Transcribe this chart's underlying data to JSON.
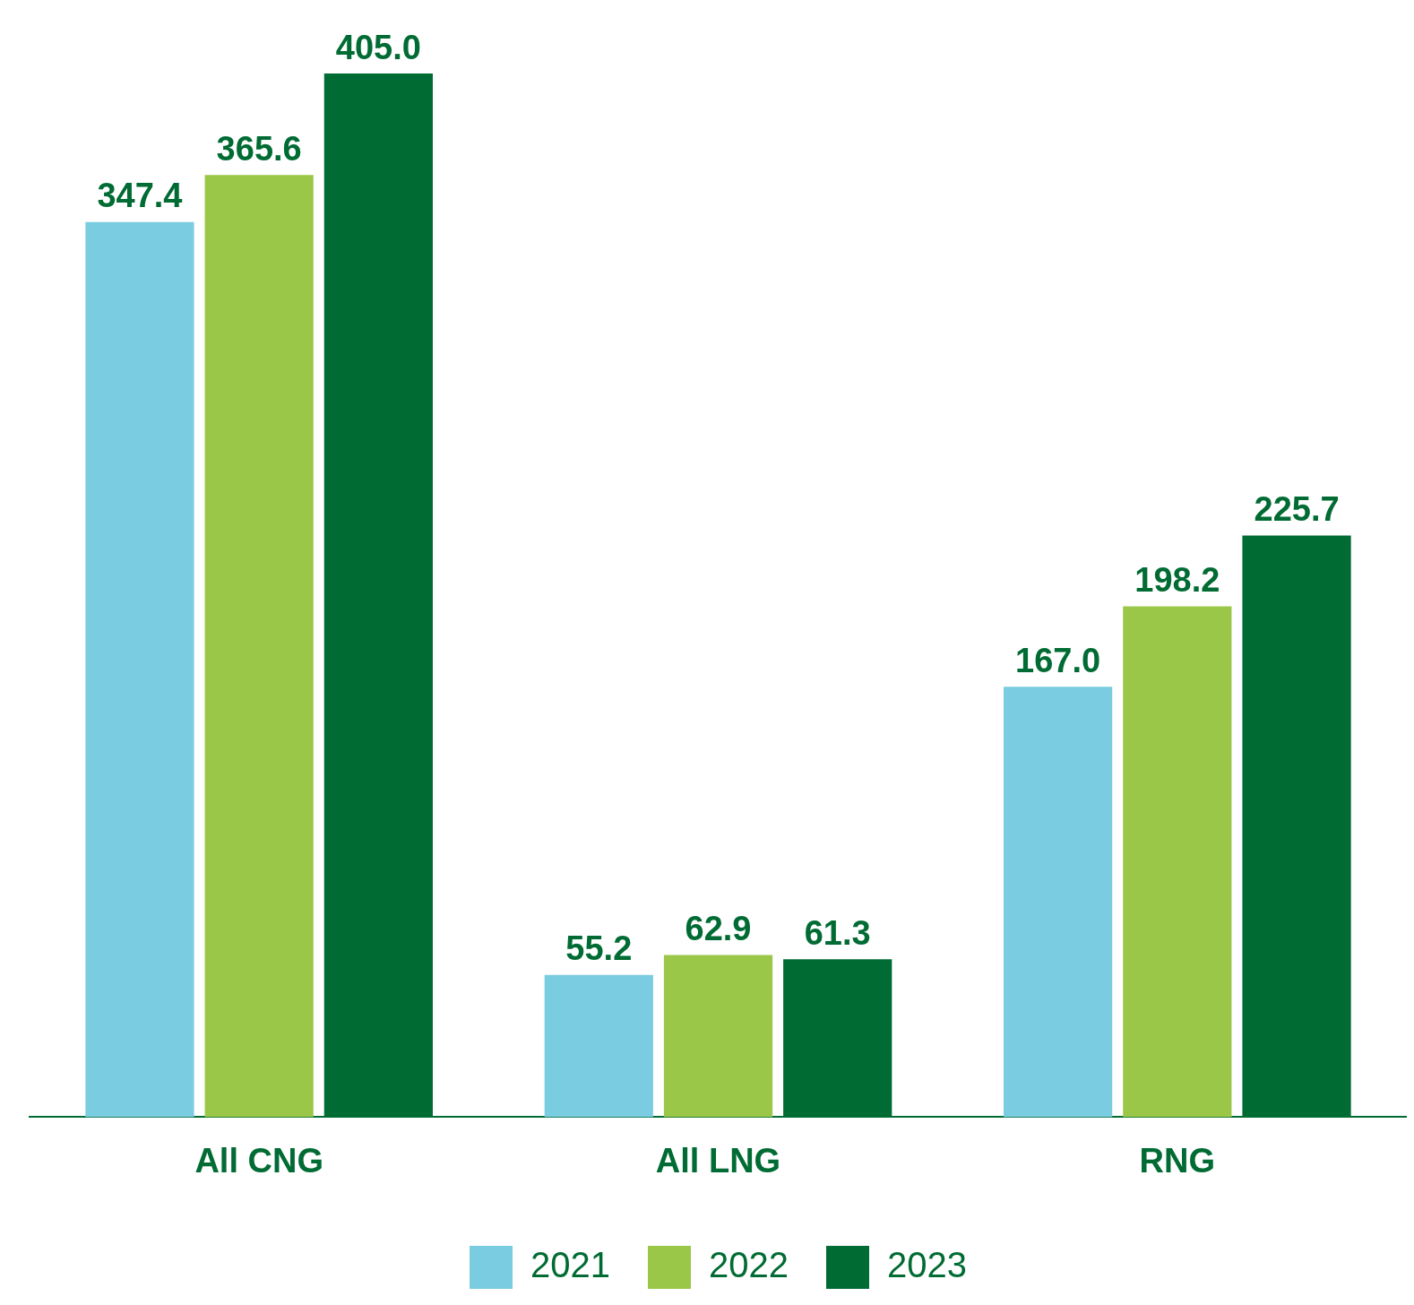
{
  "chart_data": {
    "type": "bar",
    "categories": [
      "All CNG",
      "All LNG",
      "RNG"
    ],
    "series": [
      {
        "name": "2021",
        "color": "#7acce0",
        "values": [
          347.4,
          55.2,
          167.0
        ],
        "value_labels": [
          "347.4",
          "55.2",
          "167.0"
        ]
      },
      {
        "name": "2022",
        "color": "#9bc748",
        "values": [
          365.6,
          62.9,
          198.2
        ],
        "value_labels": [
          "365.6",
          "62.9",
          "198.2"
        ]
      },
      {
        "name": "2023",
        "color": "#006b33",
        "values": [
          405.0,
          61.3,
          225.7
        ],
        "value_labels": [
          "405.0",
          "61.3",
          "225.7"
        ]
      }
    ],
    "legend": "bottom",
    "grid": false
  }
}
